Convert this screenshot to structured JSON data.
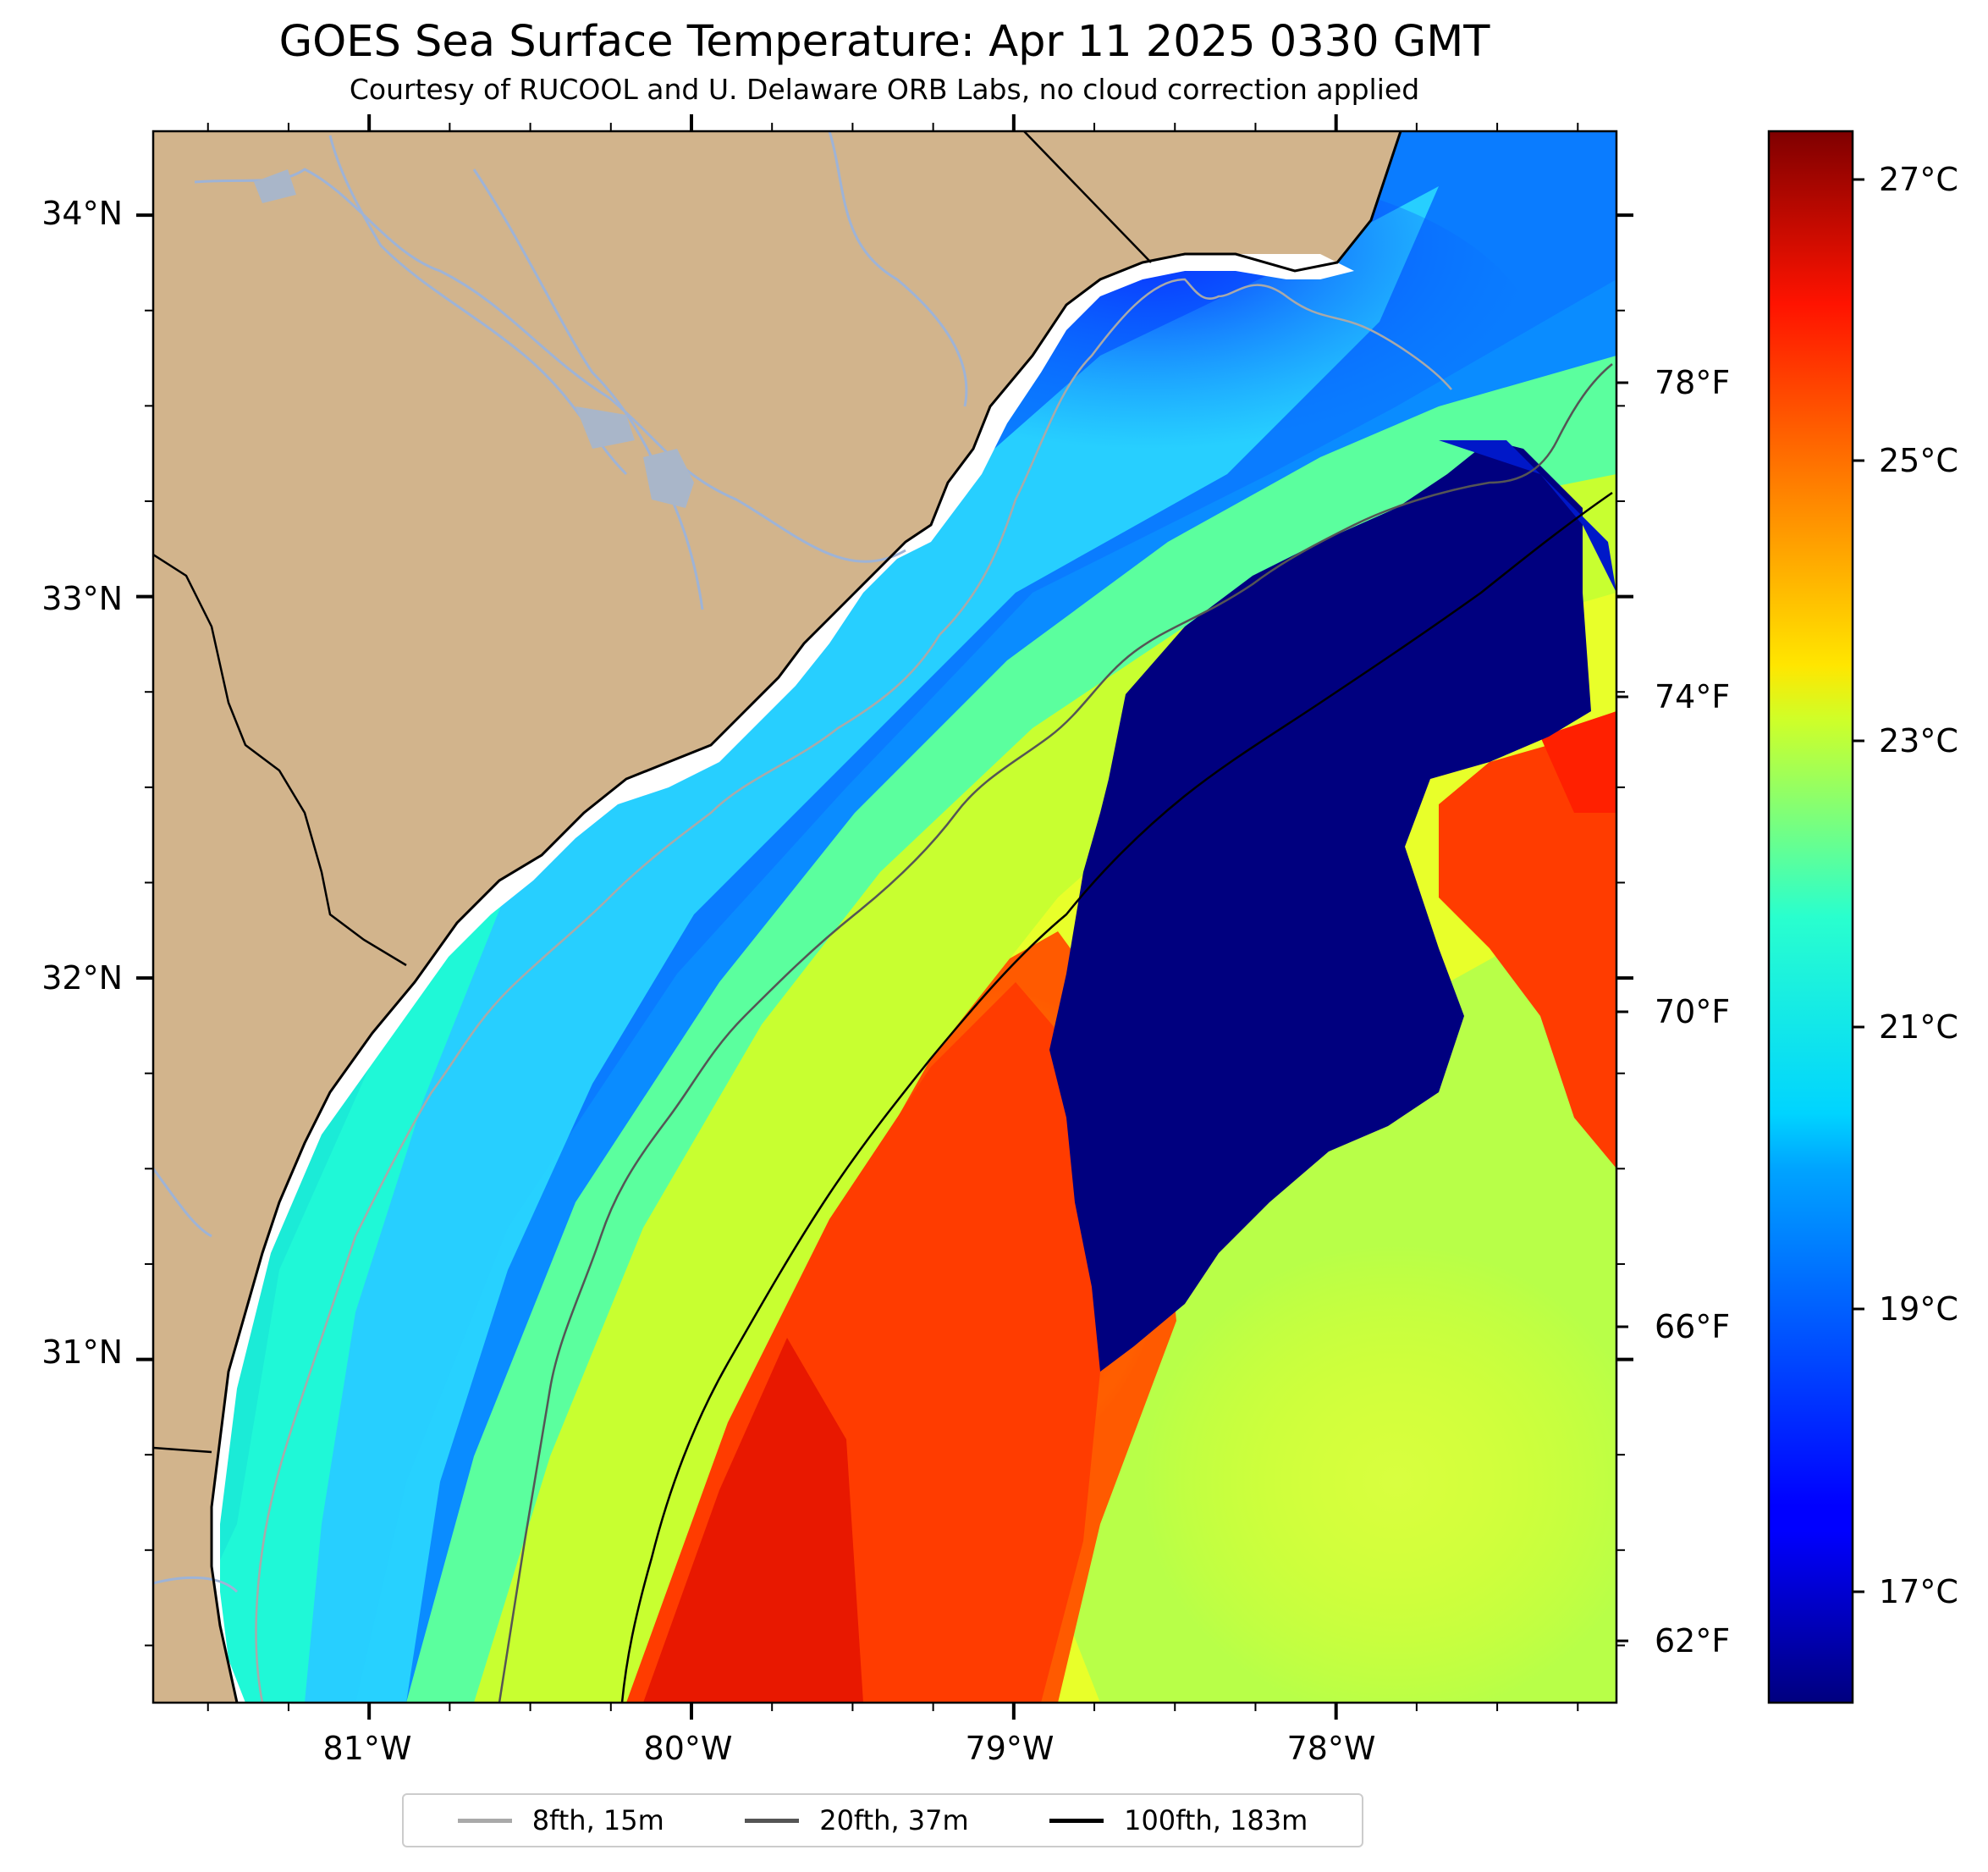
{
  "title": "GOES Sea Surface Temperature: Apr 11 2025 0330 GMT",
  "subtitle": "Courtesy of RUCOOL and U. Delaware ORB Labs, no cloud correction applied",
  "map": {
    "land_color": "#d2b48c",
    "lat_labels": [
      "34°N",
      "33°N",
      "32°N",
      "31°N"
    ],
    "lon_labels": [
      "81°W",
      "80°W",
      "79°W",
      "78°W"
    ],
    "lat_range": [
      30.1,
      34.22
    ],
    "lon_range": [
      81.67,
      77.13
    ]
  },
  "colorbar": {
    "colormap": "jet",
    "range_c": [
      16.2,
      27.4
    ],
    "celsius_labels": [
      "27°C",
      "25°C",
      "23°C",
      "21°C",
      "19°C",
      "17°C"
    ],
    "fahrenheit_labels": [
      "78°F",
      "74°F",
      "70°F",
      "66°F",
      "62°F"
    ]
  },
  "legend": {
    "placement": "bottom-center",
    "items": [
      {
        "label": "8fth, 15m",
        "color": "#a9a9a9"
      },
      {
        "label": "20fth, 37m",
        "color": "#555555"
      },
      {
        "label": "100fth, 183m",
        "color": "#000000"
      }
    ]
  }
}
